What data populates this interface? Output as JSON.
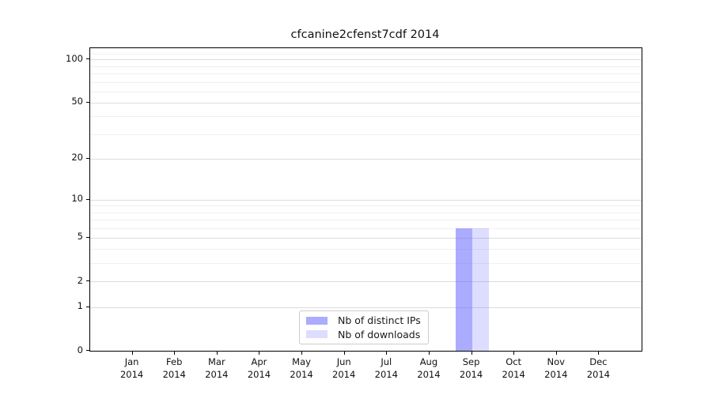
{
  "figure": {
    "background": "#ffffff"
  },
  "colors": {
    "spine": "#000000",
    "grid_major": "#dcdcdc",
    "grid_minor": "#f0f0f0",
    "text": "#111111",
    "series_distinct_ips": "rgba(102,102,255,0.55)",
    "series_downloads": "rgba(102,102,255,0.22)"
  },
  "chart_data": {
    "type": "bar",
    "title": "cfcanine2cfenst7cdf 2014",
    "xlabel": "",
    "ylabel": "",
    "yscale": "log1p",
    "ylim": [
      0,
      120
    ],
    "grid": true,
    "y_major_ticks": [
      0,
      1,
      2,
      5,
      10,
      20,
      50,
      100
    ],
    "y_minor_ticks": [
      3,
      4,
      6,
      7,
      8,
      9,
      30,
      40,
      60,
      70,
      80,
      90,
      110
    ],
    "months": [
      "Jan",
      "Feb",
      "Mar",
      "Apr",
      "May",
      "Jun",
      "Jul",
      "Aug",
      "Sep",
      "Oct",
      "Nov",
      "Dec"
    ],
    "year": "2014",
    "categories": [
      "Jan 2014",
      "Feb 2014",
      "Mar 2014",
      "Apr 2014",
      "May 2014",
      "Jun 2014",
      "Jul 2014",
      "Aug 2014",
      "Sep 2014",
      "Oct 2014",
      "Nov 2014",
      "Dec 2014"
    ],
    "series": [
      {
        "name": "Nb of distinct IPs",
        "color": "rgba(102,102,255,0.55)",
        "values": [
          0,
          0,
          0,
          0,
          0,
          0,
          0,
          0,
          6,
          0,
          0,
          0
        ]
      },
      {
        "name": "Nb of downloads",
        "color": "rgba(102,102,255,0.22)",
        "values": [
          0,
          0,
          0,
          0,
          0,
          0,
          0,
          0,
          6,
          0,
          0,
          0
        ]
      }
    ],
    "legend": {
      "position": "lower center",
      "entries": [
        "Nb of distinct IPs",
        "Nb of downloads"
      ]
    }
  }
}
